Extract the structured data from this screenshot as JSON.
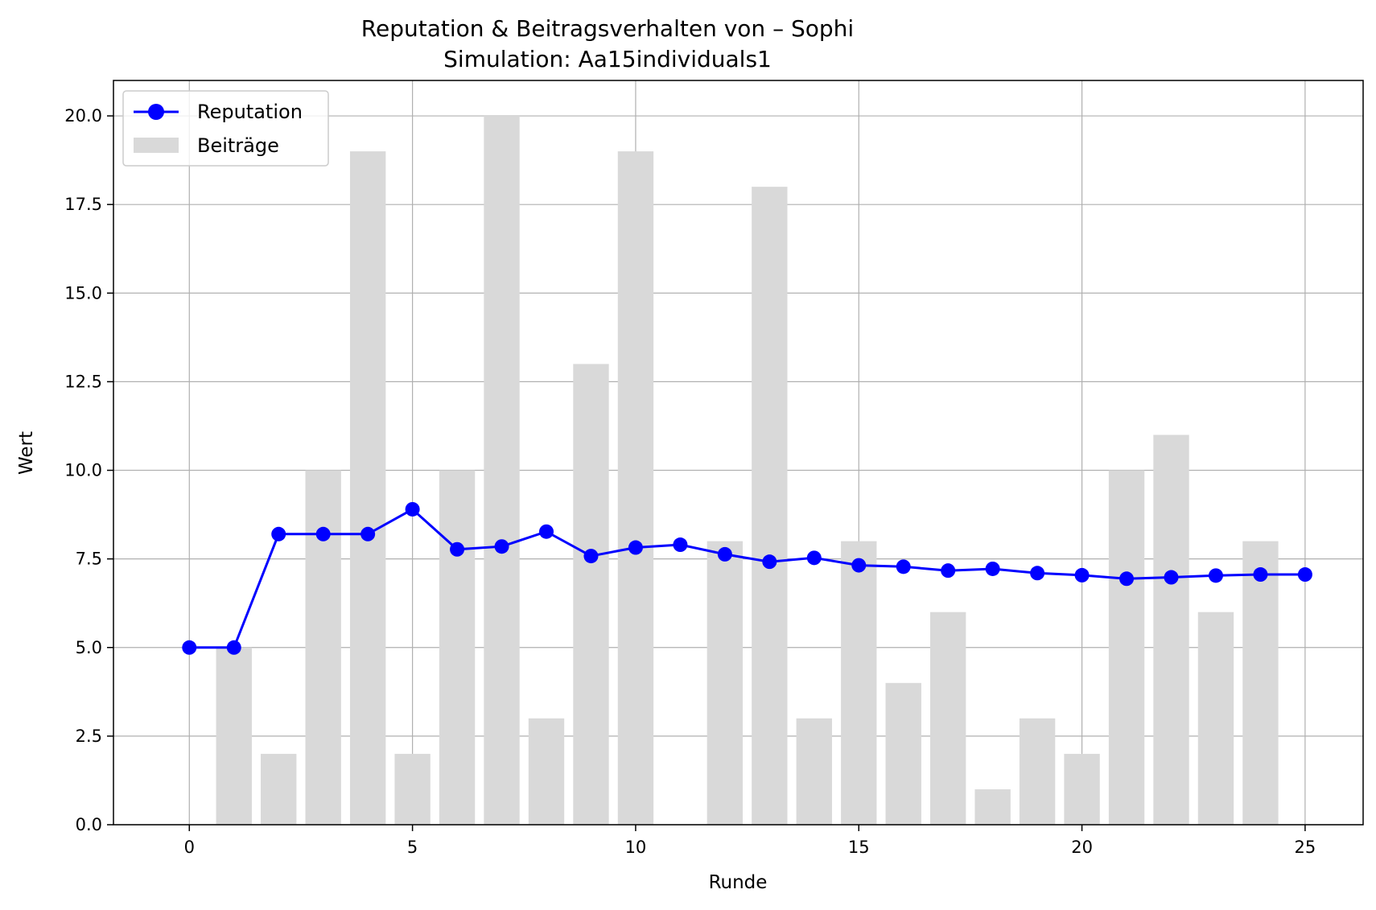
{
  "chart_data": {
    "type": "bar+line",
    "title": "Reputation & Beitragsverhalten von – Sophi",
    "subtitle": "Simulation: Aa15individuals1",
    "xlabel": "Runde",
    "ylabel": "Wert",
    "xlim": [
      -1.7,
      26.3
    ],
    "ylim": [
      0,
      21
    ],
    "xticks": [
      0,
      5,
      10,
      15,
      20,
      25
    ],
    "yticks": [
      0.0,
      2.5,
      5.0,
      7.5,
      10.0,
      12.5,
      15.0,
      17.5,
      20.0
    ],
    "xtick_labels": [
      "0",
      "5",
      "10",
      "15",
      "20",
      "25"
    ],
    "ytick_labels": [
      "0.0",
      "2.5",
      "5.0",
      "7.5",
      "10.0",
      "12.5",
      "15.0",
      "17.5",
      "20.0"
    ],
    "grid": true,
    "legend_position": "top-left",
    "series": [
      {
        "name": "Reputation",
        "kind": "line",
        "color": "#0000ff",
        "x": [
          0,
          1,
          2,
          3,
          4,
          5,
          6,
          7,
          8,
          9,
          10,
          11,
          12,
          13,
          14,
          15,
          16,
          17,
          18,
          19,
          20,
          21,
          22,
          23,
          24,
          25
        ],
        "values": [
          5.0,
          5.0,
          8.2,
          8.2,
          8.2,
          8.9,
          7.77,
          7.85,
          8.27,
          7.58,
          7.82,
          7.9,
          7.63,
          7.42,
          7.53,
          7.32,
          7.28,
          7.17,
          7.22,
          7.1,
          7.04,
          6.94,
          6.98,
          7.03,
          7.06,
          7.06
        ]
      },
      {
        "name": "Beiträge",
        "kind": "bar",
        "color": "#d9d9d9",
        "x": [
          1,
          2,
          3,
          4,
          5,
          6,
          7,
          8,
          9,
          10,
          11,
          12,
          13,
          14,
          15,
          16,
          17,
          18,
          19,
          20,
          21,
          22,
          23,
          24
        ],
        "values": [
          5,
          2,
          10,
          19,
          2,
          10,
          20,
          3,
          13,
          19,
          0,
          8,
          18,
          3,
          8,
          4,
          6,
          1,
          3,
          2,
          10,
          11,
          6,
          8
        ]
      }
    ]
  }
}
